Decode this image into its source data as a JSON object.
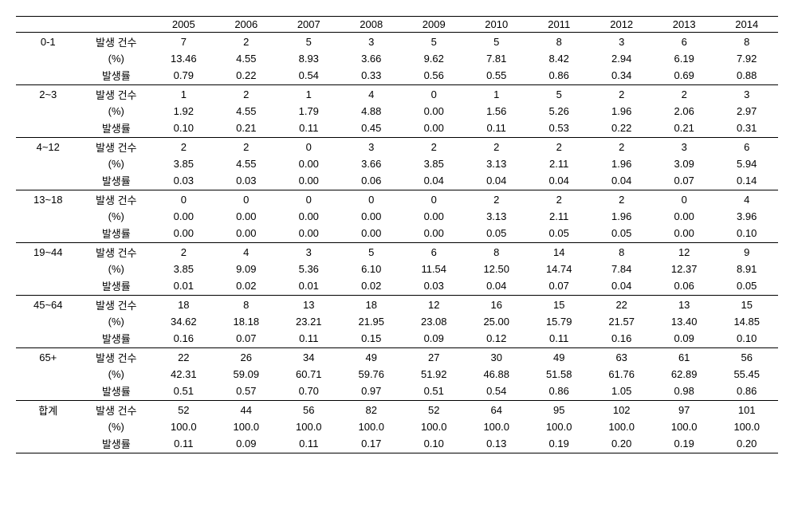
{
  "years": [
    "2005",
    "2006",
    "2007",
    "2008",
    "2009",
    "2010",
    "2011",
    "2012",
    "2013",
    "2014"
  ],
  "metrics": [
    "발생 건수",
    "(%)",
    "발생률"
  ],
  "groups": [
    {
      "label": "0-1",
      "rows": [
        [
          "7",
          "2",
          "5",
          "3",
          "5",
          "5",
          "8",
          "3",
          "6",
          "8"
        ],
        [
          "13.46",
          "4.55",
          "8.93",
          "3.66",
          "9.62",
          "7.81",
          "8.42",
          "2.94",
          "6.19",
          "7.92"
        ],
        [
          "0.79",
          "0.22",
          "0.54",
          "0.33",
          "0.56",
          "0.55",
          "0.86",
          "0.34",
          "0.69",
          "0.88"
        ]
      ]
    },
    {
      "label": "2~3",
      "rows": [
        [
          "1",
          "2",
          "1",
          "4",
          "0",
          "1",
          "5",
          "2",
          "2",
          "3"
        ],
        [
          "1.92",
          "4.55",
          "1.79",
          "4.88",
          "0.00",
          "1.56",
          "5.26",
          "1.96",
          "2.06",
          "2.97"
        ],
        [
          "0.10",
          "0.21",
          "0.11",
          "0.45",
          "0.00",
          "0.11",
          "0.53",
          "0.22",
          "0.21",
          "0.31"
        ]
      ]
    },
    {
      "label": "4~12",
      "rows": [
        [
          "2",
          "2",
          "0",
          "3",
          "2",
          "2",
          "2",
          "2",
          "3",
          "6"
        ],
        [
          "3.85",
          "4.55",
          "0.00",
          "3.66",
          "3.85",
          "3.13",
          "2.11",
          "1.96",
          "3.09",
          "5.94"
        ],
        [
          "0.03",
          "0.03",
          "0.00",
          "0.06",
          "0.04",
          "0.04",
          "0.04",
          "0.04",
          "0.07",
          "0.14"
        ]
      ]
    },
    {
      "label": "13~18",
      "rows": [
        [
          "0",
          "0",
          "0",
          "0",
          "0",
          "2",
          "2",
          "2",
          "0",
          "4"
        ],
        [
          "0.00",
          "0.00",
          "0.00",
          "0.00",
          "0.00",
          "3.13",
          "2.11",
          "1.96",
          "0.00",
          "3.96"
        ],
        [
          "0.00",
          "0.00",
          "0.00",
          "0.00",
          "0.00",
          "0.05",
          "0.05",
          "0.05",
          "0.00",
          "0.10"
        ]
      ]
    },
    {
      "label": "19~44",
      "rows": [
        [
          "2",
          "4",
          "3",
          "5",
          "6",
          "8",
          "14",
          "8",
          "12",
          "9"
        ],
        [
          "3.85",
          "9.09",
          "5.36",
          "6.10",
          "11.54",
          "12.50",
          "14.74",
          "7.84",
          "12.37",
          "8.91"
        ],
        [
          "0.01",
          "0.02",
          "0.01",
          "0.02",
          "0.03",
          "0.04",
          "0.07",
          "0.04",
          "0.06",
          "0.05"
        ]
      ]
    },
    {
      "label": "45~64",
      "rows": [
        [
          "18",
          "8",
          "13",
          "18",
          "12",
          "16",
          "15",
          "22",
          "13",
          "15"
        ],
        [
          "34.62",
          "18.18",
          "23.21",
          "21.95",
          "23.08",
          "25.00",
          "15.79",
          "21.57",
          "13.40",
          "14.85"
        ],
        [
          "0.16",
          "0.07",
          "0.11",
          "0.15",
          "0.09",
          "0.12",
          "0.11",
          "0.16",
          "0.09",
          "0.10"
        ]
      ]
    },
    {
      "label": "65+",
      "rows": [
        [
          "22",
          "26",
          "34",
          "49",
          "27",
          "30",
          "49",
          "63",
          "61",
          "56"
        ],
        [
          "42.31",
          "59.09",
          "60.71",
          "59.76",
          "51.92",
          "46.88",
          "51.58",
          "61.76",
          "62.89",
          "55.45"
        ],
        [
          "0.51",
          "0.57",
          "0.70",
          "0.97",
          "0.51",
          "0.54",
          "0.86",
          "1.05",
          "0.98",
          "0.86"
        ]
      ]
    },
    {
      "label": "합계",
      "rows": [
        [
          "52",
          "44",
          "56",
          "82",
          "52",
          "64",
          "95",
          "102",
          "97",
          "101"
        ],
        [
          "100.0",
          "100.0",
          "100.0",
          "100.0",
          "100.0",
          "100.0",
          "100.0",
          "100.0",
          "100.0",
          "100.0"
        ],
        [
          "0.11",
          "0.09",
          "0.11",
          "0.17",
          "0.10",
          "0.13",
          "0.19",
          "0.20",
          "0.19",
          "0.20"
        ]
      ]
    }
  ]
}
